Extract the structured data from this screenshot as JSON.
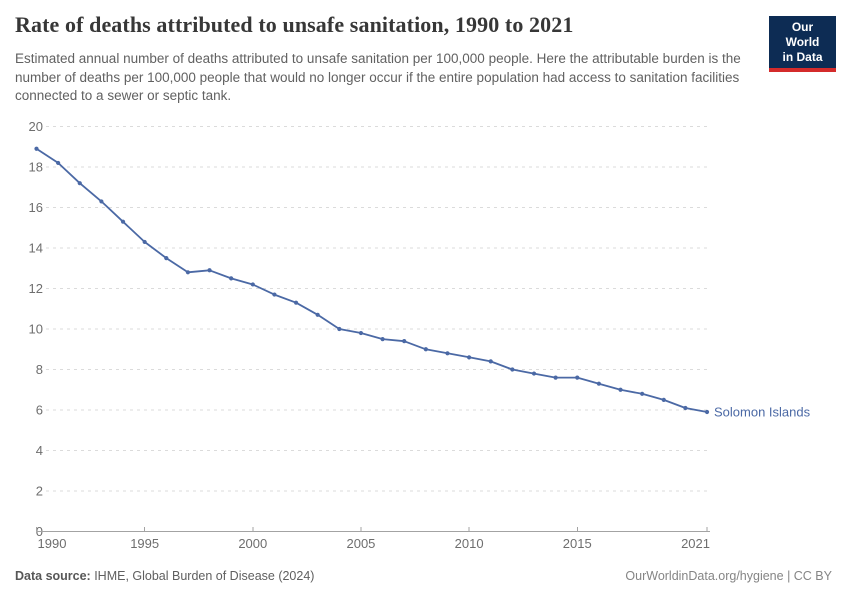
{
  "header": {
    "title": "Rate of deaths attributed to unsafe sanitation, 1990 to 2021",
    "subtitle": "Estimated annual number of deaths attributed to unsafe sanitation per 100,000 people. Here the attributable burden is the number of deaths per 100,000 people that would no longer occur if the entire population had access to sanitation facilities connected to a sewer or septic tank.",
    "logo": {
      "line1": "Our World",
      "line2": "in Data",
      "bg_color": "#0d2c54",
      "bar_color": "#d42b2b"
    }
  },
  "chart_data": {
    "type": "line",
    "title": "Rate of deaths attributed to unsafe sanitation, 1990 to 2021",
    "xlabel": "",
    "ylabel": "",
    "xlim": [
      1990,
      2021
    ],
    "ylim": [
      0,
      20
    ],
    "x_ticks": [
      1990,
      1995,
      2000,
      2005,
      2010,
      2015,
      2021
    ],
    "y_ticks": [
      0,
      2,
      4,
      6,
      8,
      10,
      12,
      14,
      16,
      18,
      20
    ],
    "grid": "horizontal-dashed",
    "legend_position": "end-of-line-label",
    "x": [
      1990,
      1991,
      1992,
      1993,
      1994,
      1995,
      1996,
      1997,
      1998,
      1999,
      2000,
      2001,
      2002,
      2003,
      2004,
      2005,
      2006,
      2007,
      2008,
      2009,
      2010,
      2011,
      2012,
      2013,
      2014,
      2015,
      2016,
      2017,
      2018,
      2019,
      2020,
      2021
    ],
    "series": [
      {
        "name": "Solomon Islands",
        "color": "#4b69a5",
        "values": [
          18.9,
          18.2,
          17.2,
          16.3,
          15.3,
          14.3,
          13.5,
          12.8,
          12.9,
          12.5,
          12.2,
          11.7,
          11.3,
          10.7,
          10.0,
          9.8,
          9.5,
          9.4,
          9.0,
          8.8,
          8.6,
          8.4,
          8.0,
          7.8,
          7.6,
          7.6,
          7.3,
          7.0,
          6.8,
          6.5,
          6.1,
          5.9
        ]
      }
    ]
  },
  "style_colors": {
    "grid": "#dbdbdb",
    "axis": "#a3a3a3",
    "tick_label": "#6e6e6e"
  },
  "footer": {
    "source_label": "Data source:",
    "source_text": " IHME, Global Burden of Disease (2024)",
    "credit": "OurWorldinData.org/hygiene | CC BY"
  }
}
